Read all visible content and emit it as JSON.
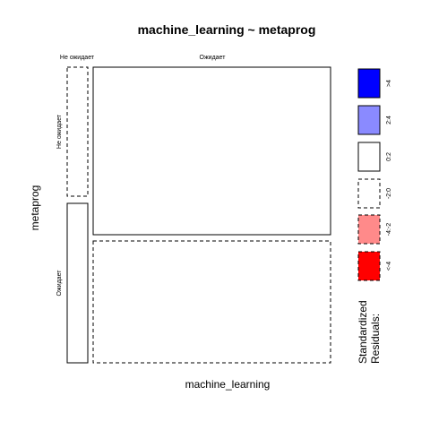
{
  "chart_data": {
    "type": "mosaic",
    "title": "machine_learning ~ metaprog",
    "xlabel": "machine_learning",
    "ylabel": "metaprog",
    "x_levels": [
      "Не ожидает",
      "Ожидает"
    ],
    "y_levels": [
      "Не ожидает",
      "Ожидает"
    ],
    "cells": [
      {
        "x": "Не ожидает",
        "y": "Не ожидает",
        "residual_band": "-2:0"
      },
      {
        "x": "Не ожидает",
        "y": "Ожидает",
        "residual_band": "0:2"
      },
      {
        "x": "Ожидает",
        "y": "Не ожидает",
        "residual_band": "0:2"
      },
      {
        "x": "Ожидает",
        "y": "Ожидает",
        "residual_band": "-2:0"
      }
    ],
    "legend": {
      "title_line1": "Standardized",
      "title_line2": "Residuals:",
      "placement": "right",
      "entries": [
        {
          "label": ">4",
          "fill": "#0000ff",
          "dashed": false
        },
        {
          "label": "2:4",
          "fill": "#8a8aff",
          "dashed": false
        },
        {
          "label": "0:2",
          "fill": "#ffffff",
          "dashed": false
        },
        {
          "label": "-2:0",
          "fill": "#ffffff",
          "dashed": true
        },
        {
          "label": "-4:-2",
          "fill": "#ff8a8a",
          "dashed": true
        },
        {
          "label": "<-4",
          "fill": "#ff0000",
          "dashed": true
        }
      ]
    }
  }
}
